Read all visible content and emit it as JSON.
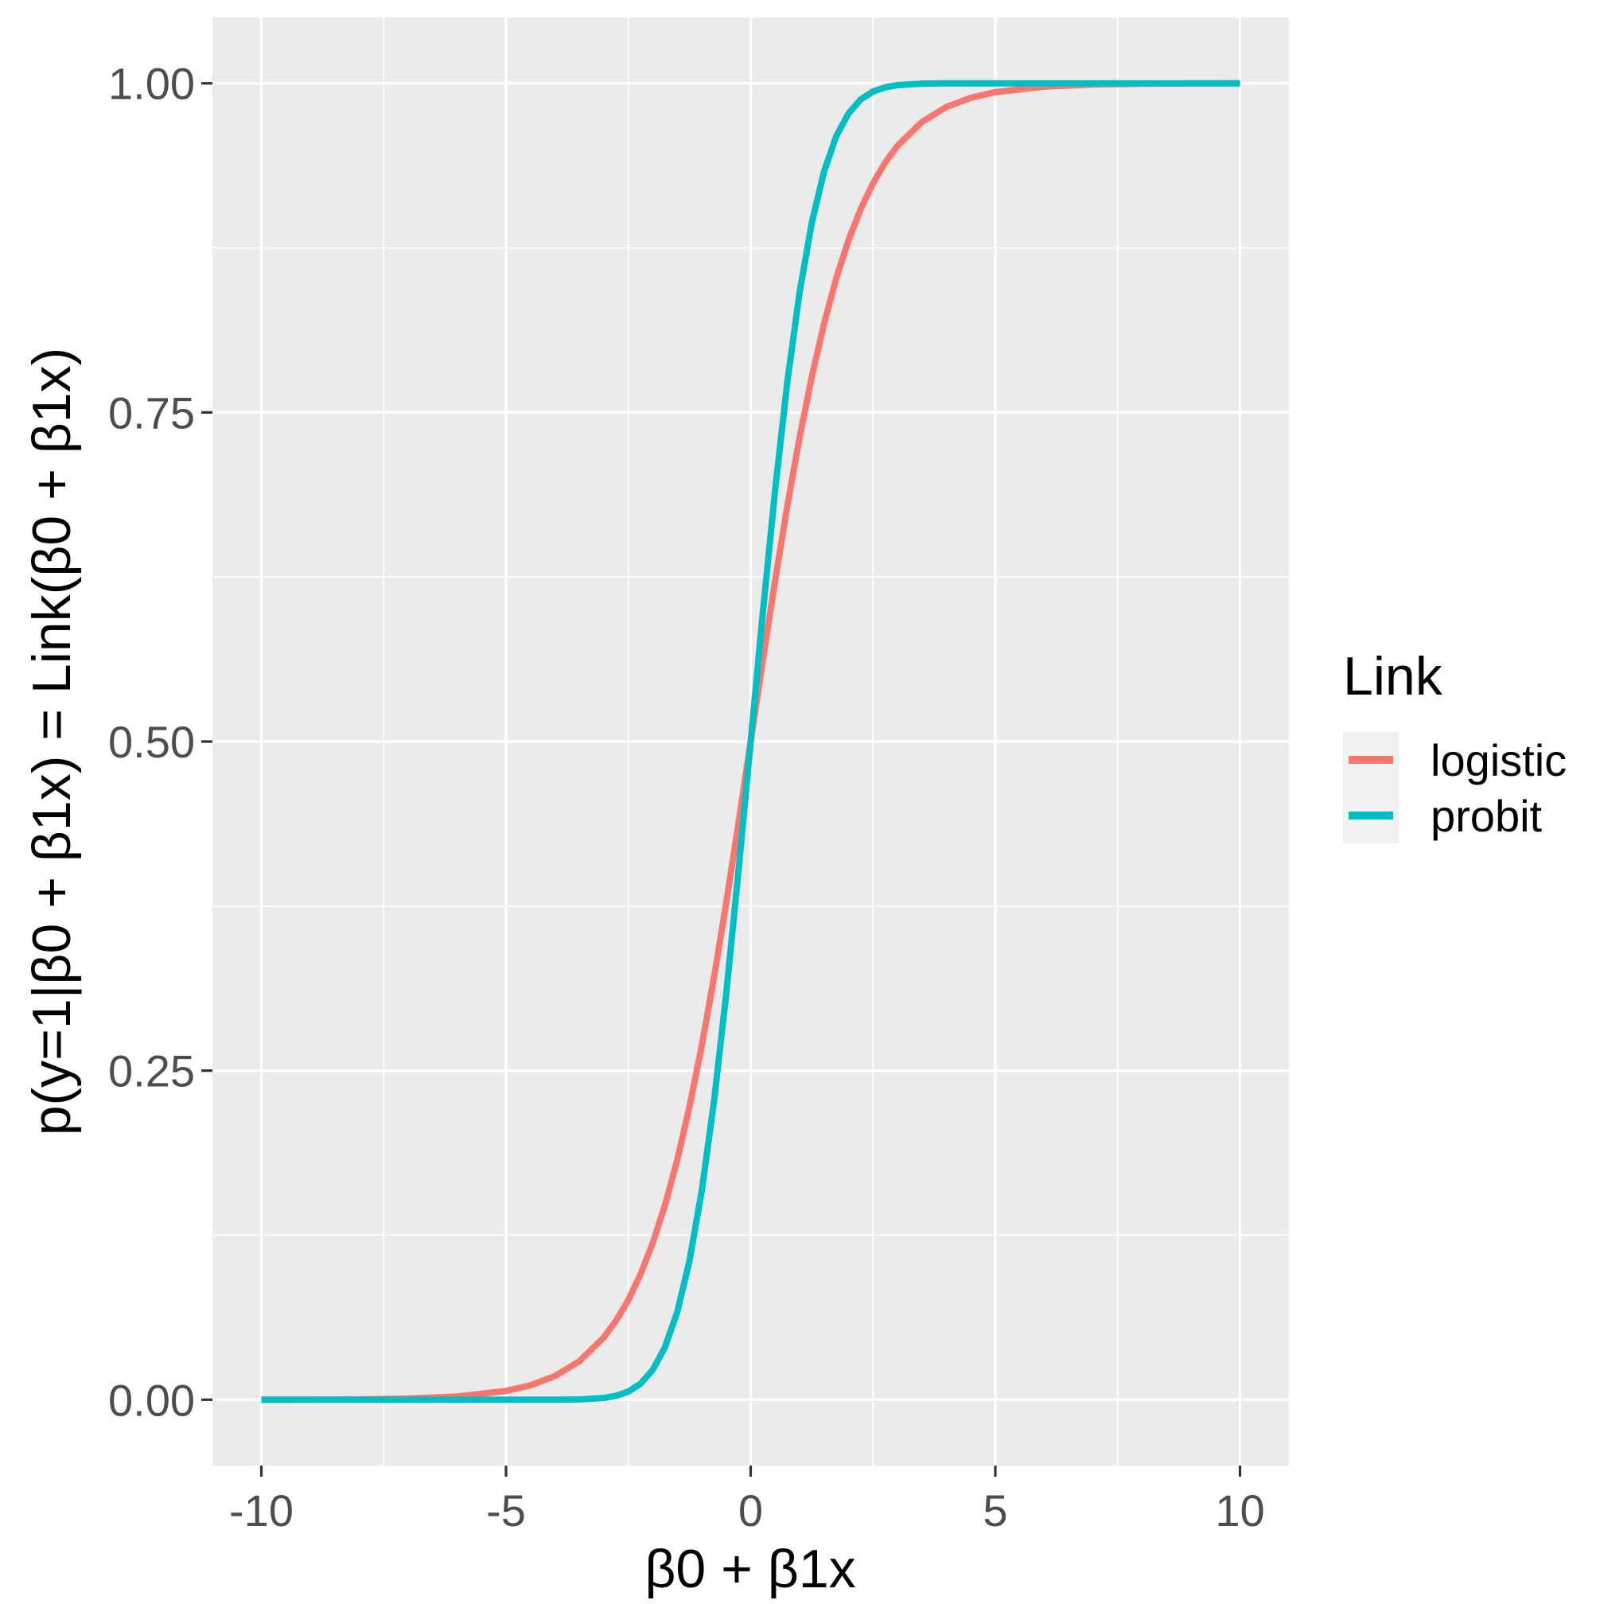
{
  "chart_data": {
    "type": "line",
    "xlabel": "β0 + β1x",
    "ylabel": "p(y=1|β0 + β1x) = Link(β0 + β1x)",
    "xlim": [
      -11,
      11
    ],
    "ylim": [
      -0.05,
      1.05
    ],
    "x_ticks": [
      -10,
      -5,
      0,
      5,
      10
    ],
    "x_tick_labels": [
      "-10",
      "-5",
      "0",
      "5",
      "10"
    ],
    "y_ticks": [
      0,
      0.25,
      0.5,
      0.75,
      1
    ],
    "y_tick_labels": [
      "0.00",
      "0.25",
      "0.50",
      "0.75",
      "1.00"
    ],
    "grid": true,
    "legend": {
      "title": "Link",
      "position": "right"
    },
    "x": [
      -10,
      -9,
      -8,
      -7,
      -6,
      -5,
      -4.5,
      -4,
      -3.5,
      -3,
      -2.75,
      -2.5,
      -2.25,
      -2,
      -1.75,
      -1.5,
      -1.25,
      -1,
      -0.75,
      -0.5,
      -0.25,
      0,
      0.25,
      0.5,
      0.75,
      1,
      1.25,
      1.5,
      1.75,
      2,
      2.25,
      2.5,
      2.75,
      3,
      3.5,
      4,
      4.5,
      5,
      6,
      7,
      8,
      9,
      10
    ],
    "series": [
      {
        "name": "logistic",
        "color": "#F8766D",
        "values": [
          5e-05,
          0.00012,
          0.00034,
          0.00091,
          0.00247,
          0.00669,
          0.01099,
          0.01799,
          0.02931,
          0.04743,
          0.06009,
          0.07586,
          0.09534,
          0.1192,
          0.148,
          0.1824,
          0.2227,
          0.2689,
          0.3208,
          0.3775,
          0.4378,
          0.5,
          0.5622,
          0.6225,
          0.6792,
          0.7311,
          0.7773,
          0.8176,
          0.852,
          0.8808,
          0.9047,
          0.9241,
          0.9399,
          0.9526,
          0.9707,
          0.982,
          0.989,
          0.9933,
          0.9975,
          0.9991,
          0.9997,
          0.9999,
          0.99995
        ]
      },
      {
        "name": "probit",
        "color": "#00BFC4",
        "values": [
          0,
          0,
          0,
          0,
          0,
          0,
          0,
          3e-05,
          0.00023,
          0.00135,
          0.00298,
          0.00621,
          0.01222,
          0.02275,
          0.04006,
          0.0668,
          0.1056,
          0.1587,
          0.2266,
          0.3085,
          0.4013,
          0.5,
          0.5987,
          0.6915,
          0.7734,
          0.8413,
          0.8944,
          0.9332,
          0.9599,
          0.9772,
          0.9878,
          0.9938,
          0.997,
          0.99865,
          0.99977,
          0.99997,
          1,
          1,
          1,
          1,
          1,
          1,
          1
        ]
      }
    ]
  }
}
